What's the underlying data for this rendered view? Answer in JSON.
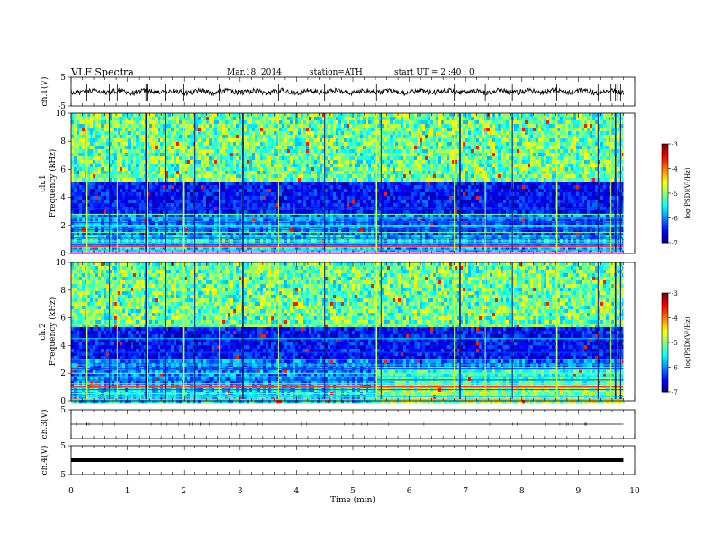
{
  "header": {
    "title": "VLF Spectra",
    "date": "Mar.18, 2014",
    "station": "station=ATH",
    "start": "start  UT  =   2  :40 : 0"
  },
  "chart_data": [
    {
      "type": "line",
      "panel": "ch1-waveform",
      "ylabel": "ch.1(V)",
      "ylim": [
        -5,
        5
      ],
      "yticks": [
        "5",
        "-5"
      ],
      "xlim": [
        0,
        10
      ],
      "x_end": 9.8,
      "baseline": 0.0,
      "spike_times": [
        0.28,
        0.68,
        0.82,
        1.33,
        1.35,
        1.67,
        1.99,
        2.63,
        3.68,
        4.5,
        5.42,
        6.8,
        7.35,
        7.83,
        8.62,
        9.35,
        9.58,
        9.66,
        9.7,
        9.75
      ]
    },
    {
      "type": "heatmap",
      "panel": "ch1-spectrogram",
      "ylabel": "ch.1\nFrequency (kHz)",
      "xlim": [
        0,
        10
      ],
      "x_end": 9.8,
      "ylim": [
        0,
        10
      ],
      "yticks": [
        "0",
        "2",
        "4",
        "6",
        "8",
        "10"
      ],
      "color_scale": {
        "label": "log(PSD)(V²/Hz)",
        "min": -7,
        "max": -3,
        "ticks": [
          "-3",
          "-4",
          "-5",
          "-6",
          "-7"
        ]
      },
      "regime_change_time": 5.4,
      "noise_floor_band_khz": [
        2.8,
        5.0
      ],
      "harmonic_lines_khz": [
        0.25,
        0.45,
        0.6,
        0.75,
        0.9,
        1.1,
        1.3,
        1.5,
        1.7,
        1.9,
        2.0,
        2.2,
        2.5,
        2.8,
        3.2
      ],
      "bright_line_khz": 0.5,
      "sferic_times": [
        0.28,
        0.68,
        0.82,
        1.33,
        1.35,
        1.67,
        1.99,
        2.2,
        2.63,
        3.05,
        3.68,
        4.5,
        5.42,
        5.5,
        6.8,
        6.9,
        7.35,
        7.83,
        8.62,
        9.35,
        9.58,
        9.66,
        9.7,
        9.75
      ]
    },
    {
      "type": "heatmap",
      "panel": "ch2-spectrogram",
      "ylabel": "ch.2\nFrequency (kHz)",
      "xlim": [
        0,
        10
      ],
      "x_end": 9.8,
      "ylim": [
        0,
        10
      ],
      "yticks": [
        "0",
        "2",
        "4",
        "6",
        "8",
        "10"
      ],
      "color_scale": {
        "label": "log(PSD)(V²/Hz)",
        "min": -7,
        "max": -3,
        "ticks": [
          "-3",
          "-4",
          "-5",
          "-6",
          "-7"
        ]
      },
      "regime_change_time": 5.4,
      "noise_floor_band_khz": [
        3.0,
        5.2
      ],
      "harmonic_lines_khz": [
        0.3,
        0.55,
        0.8,
        1.0,
        1.25,
        1.5,
        1.75,
        2.0,
        2.3,
        2.6,
        3.0,
        3.5,
        4.5,
        5.5
      ],
      "bright_line_khz": 1.0,
      "sferic_times": [
        0.28,
        0.68,
        0.82,
        1.33,
        1.35,
        1.67,
        1.99,
        2.2,
        2.63,
        3.05,
        3.68,
        4.5,
        5.42,
        5.5,
        6.8,
        6.9,
        7.35,
        7.83,
        8.62,
        9.35,
        9.58,
        9.66,
        9.7,
        9.75
      ]
    },
    {
      "type": "line",
      "panel": "ch3-waveform",
      "ylabel": "ch.3(V)",
      "ylim": [
        -5,
        5
      ],
      "yticks": [
        "5"
      ],
      "xlim": [
        0,
        10
      ],
      "x_end": 9.8,
      "baseline": 0.0
    },
    {
      "type": "line",
      "panel": "ch4-waveform",
      "ylabel": "ch.4(V)",
      "ylim": [
        -5,
        5
      ],
      "yticks": [
        "5",
        "-5"
      ],
      "xlim": [
        0,
        10
      ],
      "x_end": 9.8,
      "baseline": 0.0,
      "line_style": "thick"
    }
  ],
  "x_axis": {
    "label": "Time  (min)",
    "ticks": [
      "0",
      "1",
      "2",
      "3",
      "4",
      "5",
      "6",
      "7",
      "8",
      "9",
      "10"
    ]
  }
}
